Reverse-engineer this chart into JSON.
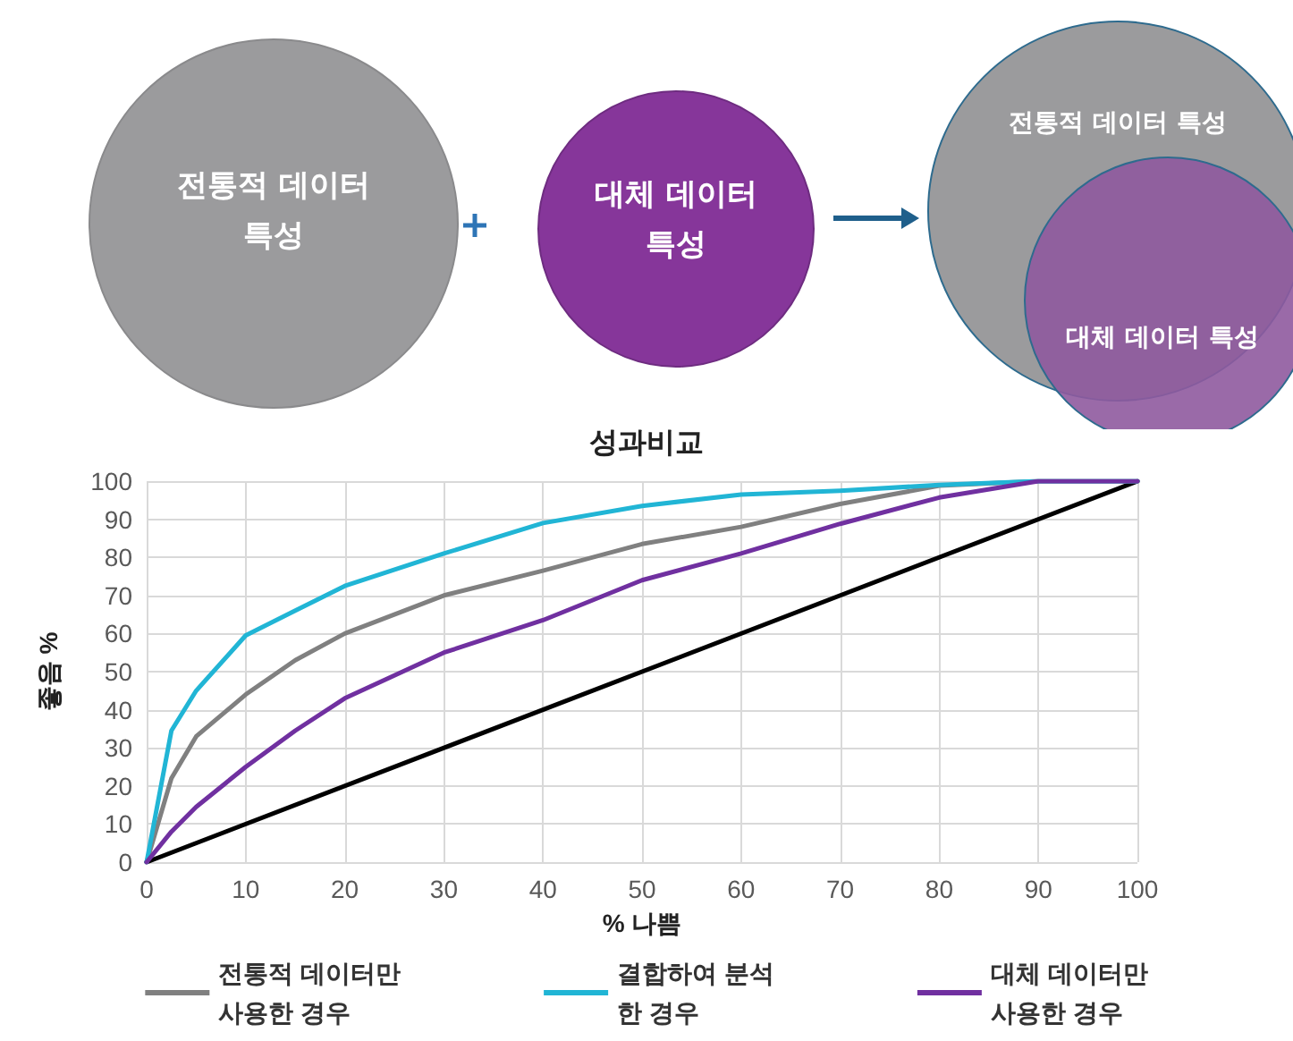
{
  "chart_data": {
    "type": "line",
    "title": "성과비교",
    "xlabel": "% 나쁨",
    "ylabel": "좋음 %",
    "x": [
      0,
      2.5,
      5,
      10,
      15,
      20,
      30,
      40,
      50,
      60,
      70,
      80,
      90,
      100
    ],
    "series": [
      {
        "name": "전통적 데이터만\n사용한 경우",
        "color": "#808080",
        "values": [
          0,
          22,
          33,
          44,
          53,
          60,
          70,
          76.5,
          83.5,
          88,
          94,
          98.8,
          100,
          100
        ]
      },
      {
        "name": "결합하여 분석\n한 경우",
        "color": "#21b5d5",
        "values": [
          0,
          34.5,
          45,
          59.5,
          66,
          72.5,
          81,
          89,
          93.5,
          96.5,
          97.5,
          99,
          100,
          100
        ]
      },
      {
        "name": "대체 데이터만\n사용한 경우",
        "color": "#7030a0",
        "values": [
          0,
          8,
          14.5,
          25,
          34.5,
          43,
          55,
          63.5,
          74,
          81,
          88.8,
          95.7,
          100,
          100
        ]
      },
      {
        "color": "#000000",
        "x": [
          0,
          100
        ],
        "values": [
          0,
          100
        ]
      }
    ],
    "xlim": [
      0,
      100
    ],
    "xticks": [
      0,
      10,
      20,
      30,
      40,
      50,
      60,
      70,
      80,
      90,
      100
    ],
    "ylim": [
      0,
      100
    ],
    "yticks": [
      0,
      10,
      20,
      30,
      40,
      50,
      60,
      70,
      80,
      90,
      100
    ],
    "grid": true,
    "legend": "bottom",
    "marker": "none",
    "line_style": "solid",
    "annotations": [
      "전통적 데이터 특성",
      "대체 데이터 특성",
      "전통적 데이터 특성",
      "대체 데이터 특성"
    ]
  }
}
